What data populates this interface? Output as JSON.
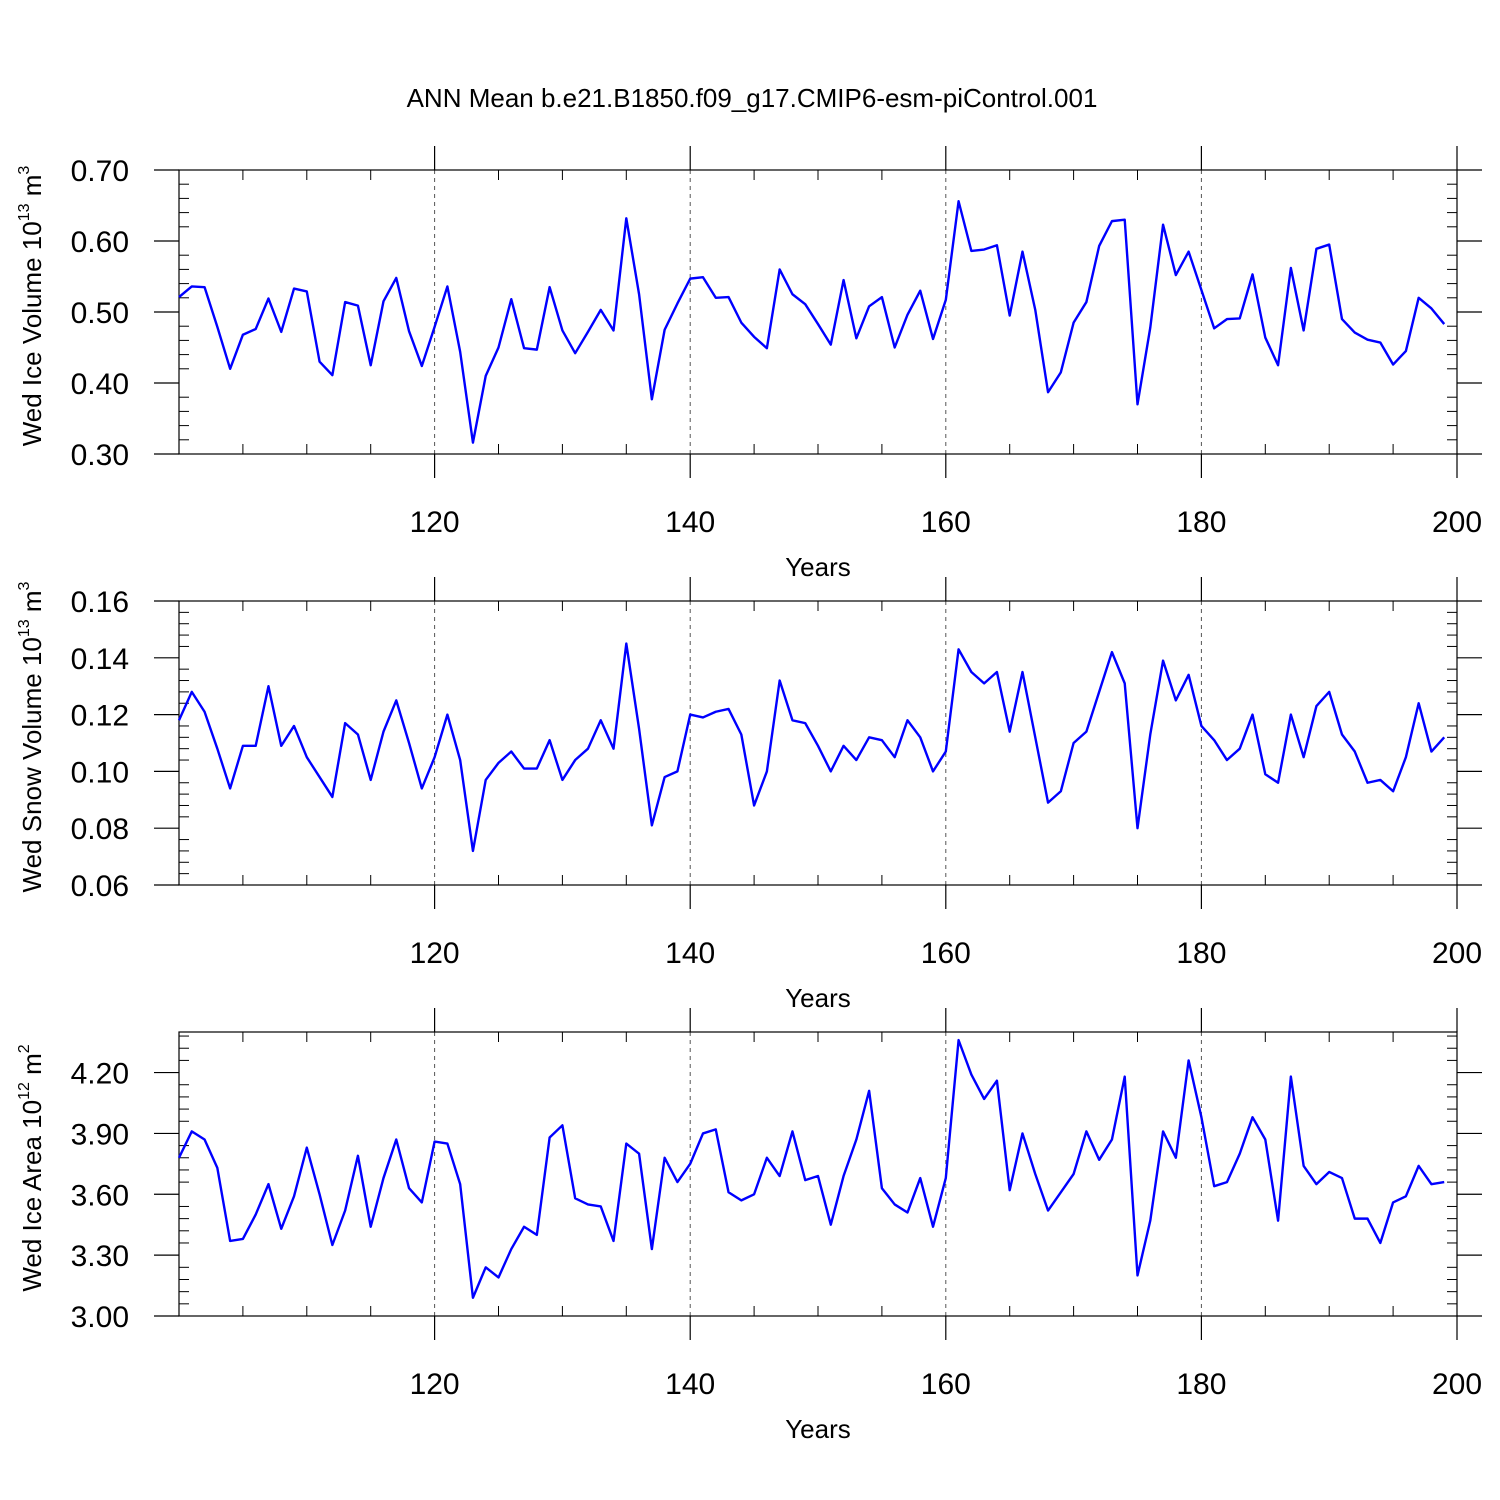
{
  "figure": {
    "title": "ANN Mean b.e21.B1850.f09_g17.CMIP6-esm-piControl.001"
  },
  "chart_data": [
    {
      "type": "line",
      "xlabel": "Years",
      "ylabel": "Wed Ice Volume 10",
      "ylabel_exp": "13",
      "ylabel_unit": " m",
      "ylabel_unit_exp": "3",
      "xlim": [
        100,
        200
      ],
      "ylim": [
        0.3,
        0.7
      ],
      "xticks": [
        120,
        140,
        160,
        180,
        200
      ],
      "yticks": [
        0.3,
        0.4,
        0.5,
        0.6,
        0.7
      ],
      "ytick_labels": [
        "0.30",
        "0.40",
        "0.50",
        "0.60",
        "0.70"
      ],
      "grid_x": true,
      "series": [
        {
          "color": "#0000ff",
          "x_start": 100,
          "values": [
            0.521,
            0.536,
            0.535,
            0.479,
            0.42,
            0.468,
            0.476,
            0.519,
            0.472,
            0.533,
            0.529,
            0.43,
            0.411,
            0.514,
            0.509,
            0.425,
            0.515,
            0.548,
            0.473,
            0.424,
            0.479,
            0.536,
            0.444,
            0.316,
            0.41,
            0.45,
            0.518,
            0.449,
            0.447,
            0.535,
            0.474,
            0.442,
            0.472,
            0.503,
            0.474,
            0.632,
            0.525,
            0.377,
            0.475,
            0.512,
            0.547,
            0.549,
            0.52,
            0.521,
            0.485,
            0.465,
            0.449,
            0.56,
            0.525,
            0.511,
            0.483,
            0.454,
            0.545,
            0.463,
            0.508,
            0.521,
            0.45,
            0.496,
            0.53,
            0.462,
            0.517,
            0.656,
            0.586,
            0.588,
            0.594,
            0.495,
            0.585,
            0.503,
            0.387,
            0.415,
            0.485,
            0.514,
            0.593,
            0.628,
            0.63,
            0.37,
            0.478,
            0.623,
            0.552,
            0.585,
            0.531,
            0.477,
            0.49,
            0.491,
            0.553,
            0.464,
            0.425,
            0.562,
            0.474,
            0.589,
            0.595,
            0.49,
            0.471,
            0.461,
            0.457,
            0.426,
            0.445,
            0.52,
            0.505,
            0.483
          ]
        }
      ]
    },
    {
      "type": "line",
      "xlabel": "Years",
      "ylabel": "Wed Snow Volume 10",
      "ylabel_exp": "13",
      "ylabel_unit": " m",
      "ylabel_unit_exp": "3",
      "xlim": [
        100,
        200
      ],
      "ylim": [
        0.06,
        0.16
      ],
      "xticks": [
        120,
        140,
        160,
        180,
        200
      ],
      "yticks": [
        0.06,
        0.08,
        0.1,
        0.12,
        0.14,
        0.16
      ],
      "ytick_labels": [
        "0.06",
        "0.08",
        "0.10",
        "0.12",
        "0.14",
        "0.16"
      ],
      "grid_x": true,
      "series": [
        {
          "color": "#0000ff",
          "x_start": 100,
          "values": [
            0.118,
            0.128,
            0.121,
            0.108,
            0.094,
            0.109,
            0.109,
            0.13,
            0.109,
            0.116,
            0.105,
            0.098,
            0.091,
            0.117,
            0.113,
            0.097,
            0.114,
            0.125,
            0.11,
            0.094,
            0.105,
            0.12,
            0.104,
            0.072,
            0.097,
            0.103,
            0.107,
            0.101,
            0.101,
            0.111,
            0.097,
            0.104,
            0.108,
            0.118,
            0.108,
            0.145,
            0.115,
            0.081,
            0.098,
            0.1,
            0.12,
            0.119,
            0.121,
            0.122,
            0.113,
            0.088,
            0.1,
            0.132,
            0.118,
            0.117,
            0.109,
            0.1,
            0.109,
            0.104,
            0.112,
            0.111,
            0.105,
            0.118,
            0.112,
            0.1,
            0.107,
            0.143,
            0.135,
            0.131,
            0.135,
            0.114,
            0.135,
            0.112,
            0.089,
            0.093,
            0.11,
            0.114,
            0.128,
            0.142,
            0.131,
            0.08,
            0.113,
            0.139,
            0.125,
            0.134,
            0.116,
            0.111,
            0.104,
            0.108,
            0.12,
            0.099,
            0.096,
            0.12,
            0.105,
            0.123,
            0.128,
            0.113,
            0.107,
            0.096,
            0.097,
            0.093,
            0.105,
            0.124,
            0.107,
            0.112
          ]
        }
      ]
    },
    {
      "type": "line",
      "xlabel": "Years",
      "ylabel": "Wed Ice Area 10",
      "ylabel_exp": "12",
      "ylabel_unit": " m",
      "ylabel_unit_exp": "2",
      "xlim": [
        100,
        200
      ],
      "ylim": [
        3.0,
        4.4
      ],
      "xticks": [
        120,
        140,
        160,
        180,
        200
      ],
      "yticks": [
        3.0,
        3.3,
        3.6,
        3.9,
        4.2
      ],
      "ytick_labels": [
        "3.00",
        "3.30",
        "3.60",
        "3.90",
        "4.20"
      ],
      "grid_x": true,
      "series": [
        {
          "color": "#0000ff",
          "x_start": 100,
          "values": [
            3.78,
            3.91,
            3.87,
            3.73,
            3.37,
            3.38,
            3.5,
            3.65,
            3.43,
            3.59,
            3.83,
            3.6,
            3.35,
            3.52,
            3.79,
            3.44,
            3.68,
            3.87,
            3.63,
            3.56,
            3.86,
            3.85,
            3.65,
            3.09,
            3.24,
            3.19,
            3.33,
            3.44,
            3.4,
            3.88,
            3.94,
            3.58,
            3.55,
            3.54,
            3.37,
            3.85,
            3.8,
            3.33,
            3.78,
            3.66,
            3.75,
            3.9,
            3.92,
            3.61,
            3.57,
            3.6,
            3.78,
            3.69,
            3.91,
            3.67,
            3.69,
            3.45,
            3.69,
            3.87,
            4.11,
            3.63,
            3.55,
            3.51,
            3.68,
            3.44,
            3.68,
            4.36,
            4.19,
            4.07,
            4.16,
            3.62,
            3.9,
            3.7,
            3.52,
            3.61,
            3.7,
            3.91,
            3.77,
            3.87,
            4.18,
            3.2,
            3.47,
            3.91,
            3.78,
            4.26,
            3.98,
            3.64,
            3.66,
            3.8,
            3.98,
            3.87,
            3.47,
            4.18,
            3.74,
            3.65,
            3.71,
            3.68,
            3.48,
            3.48,
            3.36,
            3.56,
            3.59,
            3.74,
            3.65,
            3.66
          ]
        }
      ]
    }
  ]
}
